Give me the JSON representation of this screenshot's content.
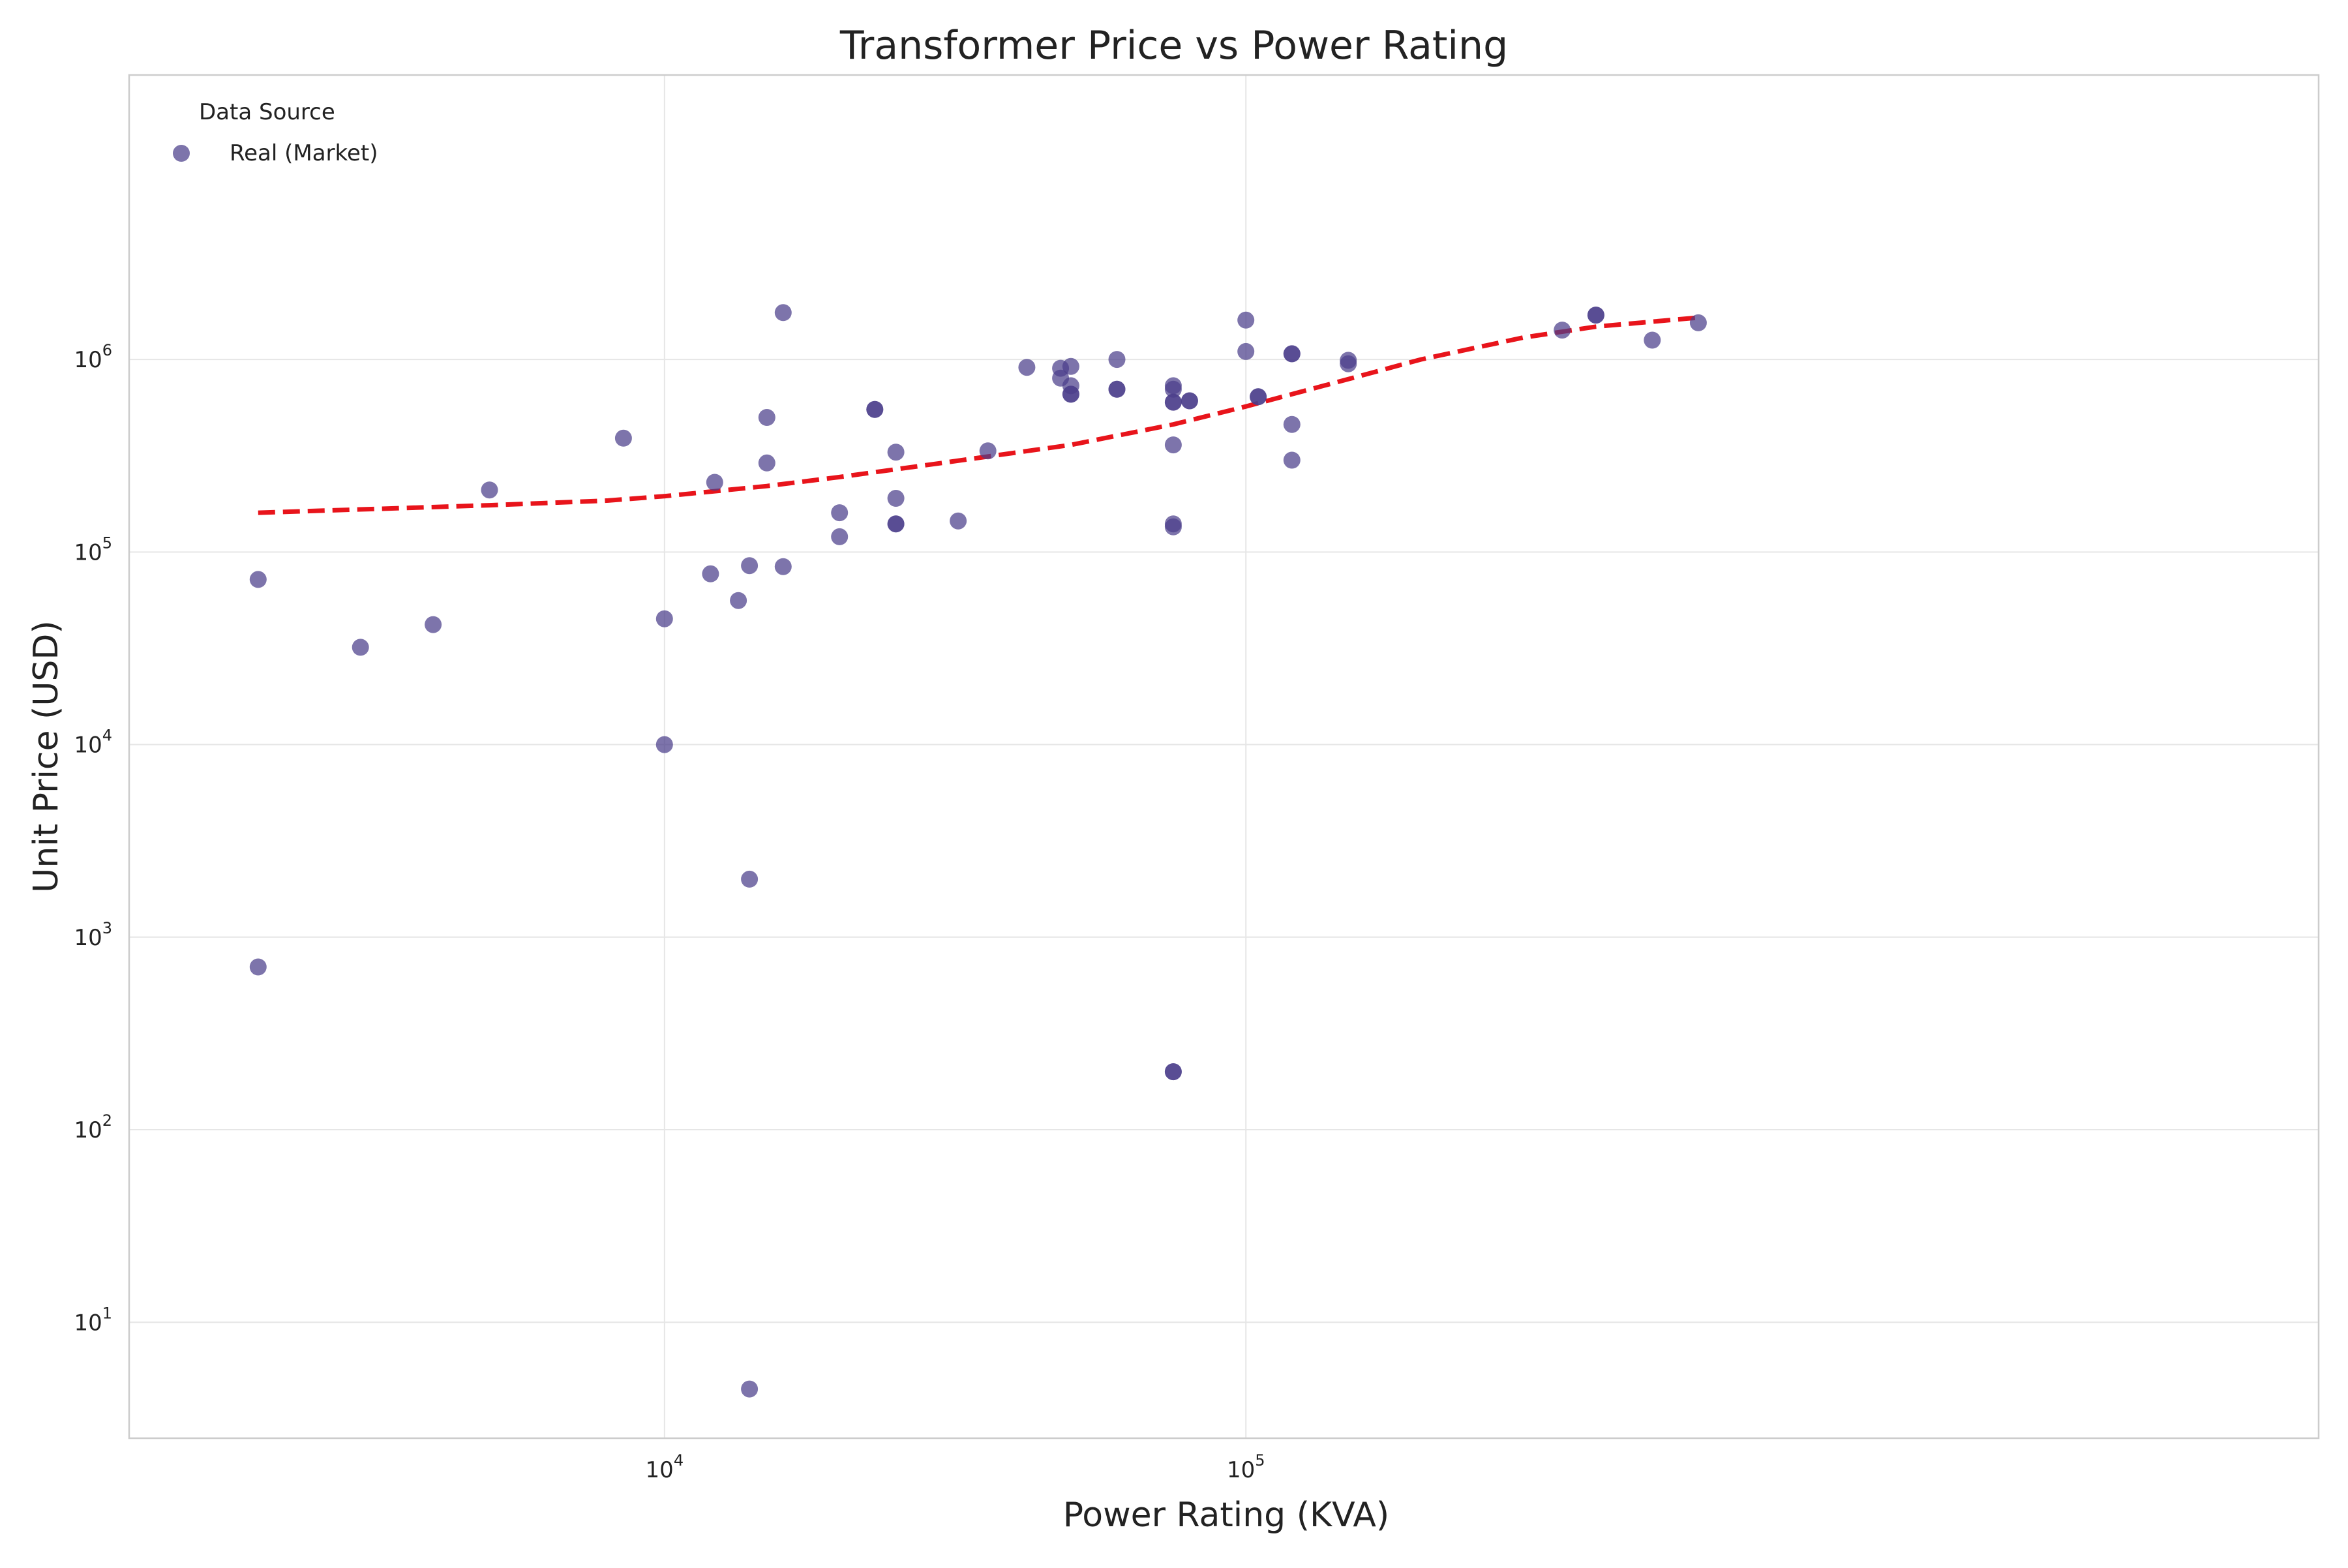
{
  "chart_data": {
    "type": "scatter",
    "title": "Transformer Price vs Power Rating",
    "xlabel": "Power Rating (KVA)",
    "ylabel": "Unit Price (USD)",
    "x_scale": "log",
    "y_scale": "log",
    "xlim": [
      1200,
      7000000
    ],
    "ylim": [
      2.5,
      30000000
    ],
    "x_ticks": [
      {
        "value": 10000,
        "base": "10",
        "exp": "4"
      },
      {
        "value": 100000,
        "base": "10",
        "exp": "5"
      }
    ],
    "y_ticks": [
      {
        "value": 10,
        "base": "10",
        "exp": "1"
      },
      {
        "value": 100,
        "base": "10",
        "exp": "2"
      },
      {
        "value": 1000,
        "base": "10",
        "exp": "3"
      },
      {
        "value": 10000,
        "base": "10",
        "exp": "4"
      },
      {
        "value": 100000,
        "base": "10",
        "exp": "5"
      },
      {
        "value": 1000000,
        "base": "10",
        "exp": "6"
      }
    ],
    "grid": true,
    "legend": {
      "title": "Data Source",
      "position": "top-left"
    },
    "colors": {
      "points": "#4b3f8a",
      "trend": "#e8141b",
      "grid": "#e6e6e6",
      "frame": "#cccccc"
    },
    "series": [
      {
        "name": "Real (Market)",
        "kind": "scatter",
        "points": [
          [
            2000,
            72000
          ],
          [
            2000,
            700
          ],
          [
            3000,
            32000
          ],
          [
            4000,
            42000
          ],
          [
            5000,
            210000
          ],
          [
            8500,
            390000
          ],
          [
            10000,
            45000
          ],
          [
            10000,
            10000
          ],
          [
            12000,
            77000
          ],
          [
            12200,
            230000
          ],
          [
            13400,
            56000
          ],
          [
            14000,
            85000
          ],
          [
            14000,
            2000
          ],
          [
            14000,
            4.5
          ],
          [
            15000,
            500000
          ],
          [
            15000,
            290000
          ],
          [
            16000,
            84000
          ],
          [
            16000,
            1750000
          ],
          [
            20000,
            160000
          ],
          [
            20000,
            120000
          ],
          [
            23000,
            550000
          ],
          [
            23000,
            550000
          ],
          [
            25000,
            330000
          ],
          [
            25000,
            190000
          ],
          [
            25000,
            140000
          ],
          [
            25000,
            140000
          ],
          [
            32000,
            145000
          ],
          [
            36000,
            335000
          ],
          [
            42000,
            910000
          ],
          [
            48000,
            900000
          ],
          [
            48000,
            800000
          ],
          [
            50000,
            920000
          ],
          [
            50000,
            730000
          ],
          [
            50000,
            660000
          ],
          [
            50000,
            660000
          ],
          [
            60000,
            1000000
          ],
          [
            60000,
            700000
          ],
          [
            60000,
            700000
          ],
          [
            75000,
            730000
          ],
          [
            75000,
            700000
          ],
          [
            75000,
            600000
          ],
          [
            75000,
            600000
          ],
          [
            75000,
            360000
          ],
          [
            75000,
            140000
          ],
          [
            75000,
            135000
          ],
          [
            75000,
            200
          ],
          [
            75000,
            200
          ],
          [
            80000,
            610000
          ],
          [
            80000,
            610000
          ],
          [
            100000,
            1600000
          ],
          [
            100000,
            1100000
          ],
          [
            105000,
            640000
          ],
          [
            105000,
            640000
          ],
          [
            120000,
            1070000
          ],
          [
            120000,
            1070000
          ],
          [
            120000,
            460000
          ],
          [
            120000,
            300000
          ],
          [
            150000,
            990000
          ],
          [
            150000,
            950000
          ],
          [
            350000,
            1420000
          ],
          [
            400000,
            1700000
          ],
          [
            400000,
            1700000
          ],
          [
            500000,
            1260000
          ],
          [
            600000,
            1550000
          ]
        ]
      },
      {
        "name": "",
        "kind": "trend",
        "points": [
          [
            2000,
            160000
          ],
          [
            5000,
            175000
          ],
          [
            8000,
            185000
          ],
          [
            10000,
            195000
          ],
          [
            15000,
            220000
          ],
          [
            20000,
            245000
          ],
          [
            30000,
            290000
          ],
          [
            50000,
            360000
          ],
          [
            75000,
            460000
          ],
          [
            100000,
            570000
          ],
          [
            150000,
            790000
          ],
          [
            200000,
            1000000
          ],
          [
            300000,
            1300000
          ],
          [
            400000,
            1480000
          ],
          [
            600000,
            1650000
          ]
        ]
      }
    ]
  }
}
